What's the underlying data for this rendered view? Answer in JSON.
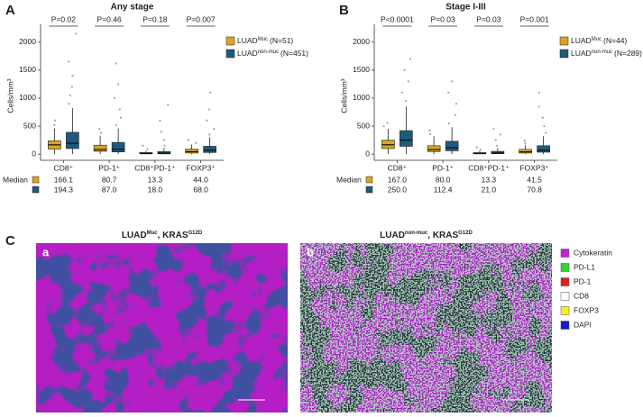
{
  "chart_data": [
    {
      "type": "box",
      "panel_label": "A",
      "title": "Any stage",
      "y_label": "Cells/mm³",
      "ylim": [
        -110,
        2190
      ],
      "yticks": [
        0,
        500,
        1000,
        1500,
        2000
      ],
      "categories": [
        "CD8⁺",
        "PD-1⁺",
        "CD8⁺PD-1⁺",
        "FOXP3⁺"
      ],
      "p_values": [
        "P=0.02",
        "P=0.46",
        "P=0.18",
        "P=0.007"
      ],
      "median_row_label": "Median",
      "series": [
        {
          "name": "LUAD",
          "name_sup": "Muc",
          "name_suffix": "(N=51)",
          "color": "#d9a521",
          "q1": [
            90,
            50,
            5,
            20
          ],
          "median": [
            166.1,
            80.7,
            13.3,
            44.0
          ],
          "median_labels": [
            "166.1",
            "80.7",
            "13.3",
            "44.0"
          ],
          "q3": [
            240,
            160,
            30,
            90
          ],
          "whisker_low": [
            0,
            0,
            0,
            0
          ],
          "whisker_high": [
            460,
            330,
            60,
            170
          ],
          "outliers": [
            [
              520,
              600
            ],
            [
              380,
              450
            ],
            [
              90,
              150
            ],
            [
              200,
              250
            ]
          ]
        },
        {
          "name": "LUAD",
          "name_sup": "non-muc",
          "name_suffix": "(N=451)",
          "color": "#1d5a7e",
          "q1": [
            100,
            40,
            5,
            30
          ],
          "median": [
            194.3,
            87.0,
            18.0,
            68.0
          ],
          "median_labels": [
            "194.3",
            "87.0",
            "18.0",
            "68.0"
          ],
          "q3": [
            390,
            210,
            45,
            140
          ],
          "whisker_low": [
            0,
            0,
            0,
            0
          ],
          "whisker_high": [
            820,
            460,
            110,
            300
          ],
          "outliers": [
            [
              900,
              1050,
              1200,
              1400,
              1650,
              2150
            ],
            [
              520,
              650,
              800,
              1000,
              1250,
              1620
            ],
            [
              150,
              250,
              400,
              600,
              880
            ],
            [
              350,
              450,
              600,
              800,
              1100
            ]
          ]
        }
      ]
    },
    {
      "type": "box",
      "panel_label": "B",
      "title": "Stage I-III",
      "y_label": "Cells/mm³",
      "ylim": [
        -110,
        2190
      ],
      "yticks": [
        0,
        500,
        1000,
        1500,
        2000
      ],
      "categories": [
        "CD8⁺",
        "PD-1⁺",
        "CD8⁺PD-1⁺",
        "FOXP3⁺"
      ],
      "p_values": [
        "P<0.0001",
        "P=0.03",
        "P=0.03",
        "P=0.001"
      ],
      "median_row_label": "Median",
      "series": [
        {
          "name": "LUAD",
          "name_sup": "Muc",
          "name_suffix": "(N=44)",
          "color": "#d9a521",
          "q1": [
            100,
            45,
            5,
            20
          ],
          "median": [
            167.0,
            80.0,
            13.3,
            41.5
          ],
          "median_labels": [
            "167.0",
            "80.0",
            "13.3",
            "41.5"
          ],
          "q3": [
            250,
            150,
            28,
            85
          ],
          "whisker_low": [
            0,
            0,
            0,
            0
          ],
          "whisker_high": [
            450,
            320,
            60,
            160
          ],
          "outliers": [
            [
              500,
              560
            ],
            [
              360,
              420
            ],
            [
              80,
              120
            ],
            [
              190,
              240
            ]
          ]
        },
        {
          "name": "LUAD",
          "name_sup": "non-muc",
          "name_suffix": "(N=289)",
          "color": "#1d5a7e",
          "q1": [
            140,
            60,
            8,
            35
          ],
          "median": [
            250.0,
            112.4,
            21.0,
            70.8
          ],
          "median_labels": [
            "250.0",
            "112.4",
            "21.0",
            "70.8"
          ],
          "q3": [
            420,
            230,
            50,
            150
          ],
          "whisker_low": [
            0,
            0,
            0,
            0
          ],
          "whisker_high": [
            850,
            480,
            110,
            320
          ],
          "outliers": [
            [
              950,
              1100,
              1300,
              1500,
              1700
            ],
            [
              550,
              700,
              900,
              1100,
              1300
            ],
            [
              150,
              250,
              350,
              450
            ],
            [
              380,
              500,
              650,
              850,
              1100
            ]
          ]
        }
      ]
    }
  ],
  "panel_c": {
    "panel_label": "C",
    "images": [
      {
        "label": "a",
        "title": "LUAD",
        "title_sup": "Muc",
        "title_mid": ", KRAS",
        "title_sup2": "G12D"
      },
      {
        "label": "b",
        "title": "LUAD",
        "title_sup": "non-muc",
        "title_mid": ", KRAS",
        "title_sup2": "G12D"
      }
    ],
    "legend": [
      {
        "name": "Cytokeratin",
        "color": "#c21fd6"
      },
      {
        "name": "PD-L1",
        "color": "#33d633"
      },
      {
        "name": "PD-1",
        "color": "#e02020"
      },
      {
        "name": "CD8",
        "color": "#ffffff"
      },
      {
        "name": "FOXP3",
        "color": "#f2f21a"
      },
      {
        "name": "DAPI",
        "color": "#1a1acc"
      }
    ]
  }
}
